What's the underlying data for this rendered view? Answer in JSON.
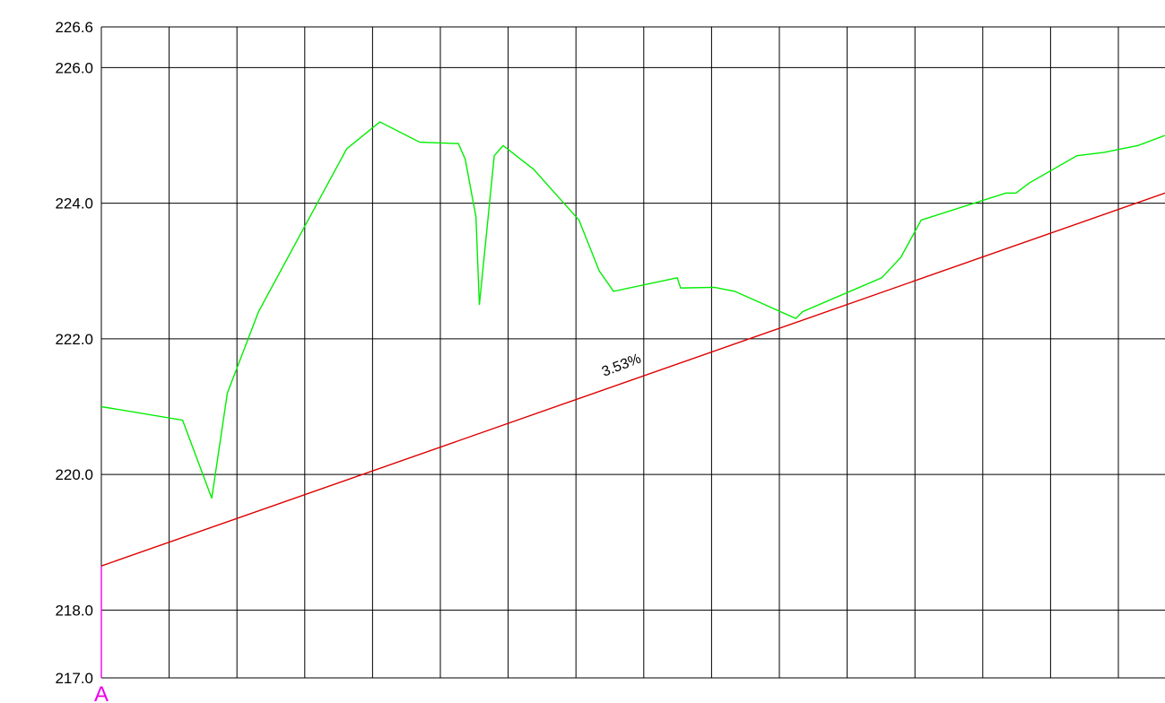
{
  "chart_data": {
    "type": "line",
    "title": "",
    "xlabel": "",
    "ylabel": "",
    "ylim": [
      217.0,
      226.6
    ],
    "y_ticks": [
      "226.6",
      "226.0",
      "224.0",
      "222.0",
      "220.0",
      "218.0",
      "217.0"
    ],
    "y_tick_values": [
      226.6,
      226.0,
      224.0,
      222.0,
      220.0,
      218.0,
      217.0
    ],
    "xlim": [
      0,
      15.7
    ],
    "vertical_grid_count": 16,
    "grid": true,
    "series": [
      {
        "color": "#00ee00",
        "x": [
          0,
          1.2,
          1.63,
          1.86,
          2.32,
          3.62,
          4.11,
          4.7,
          5.27,
          5.37,
          5.53,
          5.58,
          5.8,
          5.93,
          6.38,
          7.05,
          7.35,
          7.56,
          8.5,
          8.55,
          9.05,
          9.35,
          10.25,
          10.35,
          11.52,
          11.8,
          12.1,
          13.35,
          13.5,
          13.7,
          14.4,
          14.8,
          15.3,
          15.7
        ],
        "values": [
          221.0,
          220.8,
          219.65,
          221.2,
          222.4,
          224.8,
          225.2,
          224.9,
          224.88,
          224.65,
          223.8,
          222.5,
          224.7,
          224.85,
          224.5,
          223.75,
          223.0,
          222.7,
          222.9,
          222.75,
          222.76,
          222.7,
          222.3,
          222.4,
          222.9,
          223.2,
          223.75,
          224.15,
          224.15,
          224.3,
          224.7,
          224.75,
          224.85,
          225.0
        ]
      },
      {
        "color": "#dd0000",
        "x": [
          0,
          15.7
        ],
        "values": [
          218.65,
          224.15
        ]
      }
    ],
    "annotations": [
      {
        "text": "3.53%",
        "x": 7.7,
        "y": 221.55,
        "rotation": -21
      }
    ],
    "markers": [
      {
        "label": "A",
        "x": 0,
        "color": "#ee00ee"
      }
    ]
  }
}
